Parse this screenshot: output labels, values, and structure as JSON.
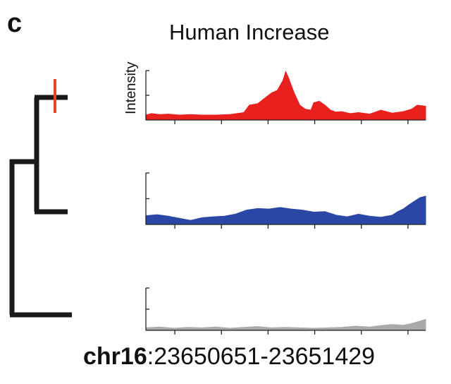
{
  "panel_label": "c",
  "colors": {
    "tree": "#1a1a1a",
    "marker": "#e8432a",
    "axis": "#222222"
  },
  "chart_data": {
    "type": "area",
    "title": "Human Increase",
    "ylabel": "Intensity",
    "region": {
      "chromosome": "chr16",
      "separator": ":",
      "range": "23650651-23651429"
    },
    "x_tick_count": 6,
    "ylim": [
      0,
      1
    ],
    "grid": false,
    "tree": {
      "leaves": 3,
      "marker_on_leaf": 0
    },
    "series": [
      {
        "color": "#e8201e",
        "x": [
          0,
          0.02,
          0.05,
          0.08,
          0.12,
          0.16,
          0.2,
          0.25,
          0.3,
          0.35,
          0.37,
          0.4,
          0.42,
          0.45,
          0.47,
          0.49,
          0.5,
          0.51,
          0.52,
          0.53,
          0.55,
          0.57,
          0.59,
          0.6,
          0.62,
          0.64,
          0.66,
          0.68,
          0.7,
          0.73,
          0.76,
          0.8,
          0.84,
          0.88,
          0.92,
          0.95,
          0.97,
          1.0
        ],
        "values": [
          0.1,
          0.13,
          0.11,
          0.12,
          0.1,
          0.11,
          0.1,
          0.1,
          0.11,
          0.15,
          0.3,
          0.33,
          0.42,
          0.55,
          0.6,
          0.8,
          0.98,
          0.85,
          0.7,
          0.55,
          0.3,
          0.22,
          0.2,
          0.35,
          0.38,
          0.3,
          0.2,
          0.16,
          0.17,
          0.13,
          0.15,
          0.12,
          0.2,
          0.14,
          0.17,
          0.22,
          0.3,
          0.28
        ]
      },
      {
        "color": "#2b47a6",
        "x": [
          0,
          0.04,
          0.08,
          0.12,
          0.16,
          0.2,
          0.24,
          0.28,
          0.32,
          0.36,
          0.4,
          0.44,
          0.48,
          0.52,
          0.56,
          0.6,
          0.64,
          0.68,
          0.72,
          0.76,
          0.8,
          0.84,
          0.88,
          0.9,
          0.92,
          0.94,
          0.96,
          0.98,
          1.0
        ],
        "values": [
          0.17,
          0.19,
          0.16,
          0.12,
          0.08,
          0.13,
          0.15,
          0.16,
          0.2,
          0.28,
          0.31,
          0.3,
          0.33,
          0.3,
          0.28,
          0.24,
          0.25,
          0.18,
          0.15,
          0.2,
          0.16,
          0.14,
          0.18,
          0.25,
          0.3,
          0.38,
          0.45,
          0.52,
          0.55
        ]
      },
      {
        "color": "#a9a9a9",
        "x": [
          0,
          0.05,
          0.1,
          0.15,
          0.2,
          0.25,
          0.3,
          0.35,
          0.4,
          0.45,
          0.5,
          0.55,
          0.6,
          0.65,
          0.7,
          0.75,
          0.8,
          0.85,
          0.88,
          0.92,
          0.95,
          0.98,
          1.0
        ],
        "values": [
          0.06,
          0.08,
          0.05,
          0.07,
          0.06,
          0.08,
          0.05,
          0.07,
          0.09,
          0.06,
          0.07,
          0.06,
          0.05,
          0.06,
          0.07,
          0.1,
          0.08,
          0.12,
          0.14,
          0.12,
          0.16,
          0.22,
          0.26
        ]
      }
    ]
  }
}
